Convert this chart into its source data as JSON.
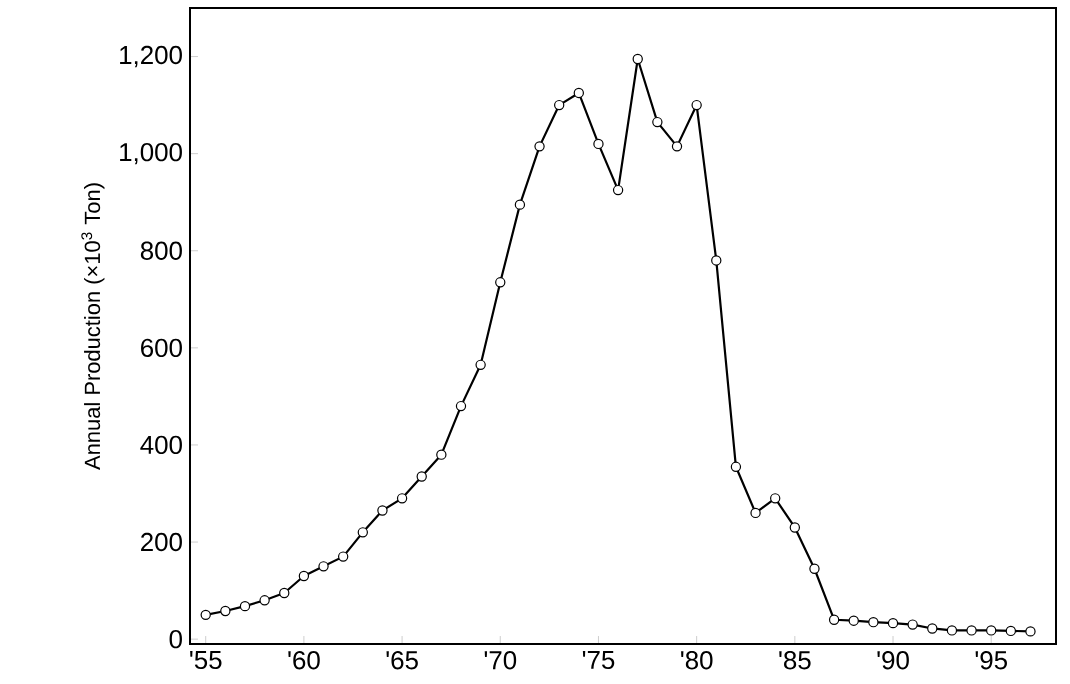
{
  "chart_data": {
    "type": "line",
    "ylabel": "Annual Production (×10$^{3}$ Ton)",
    "x": [
      1955,
      1956,
      1957,
      1958,
      1959,
      1960,
      1961,
      1962,
      1963,
      1964,
      1965,
      1966,
      1967,
      1968,
      1969,
      1970,
      1971,
      1972,
      1973,
      1974,
      1975,
      1976,
      1977,
      1978,
      1979,
      1980,
      1981,
      1982,
      1983,
      1984,
      1985,
      1986,
      1987,
      1988,
      1989,
      1990,
      1991,
      1992,
      1993,
      1994,
      1995,
      1996,
      1997
    ],
    "series": [
      {
        "color": "#000000",
        "values": [
          50,
          58,
          68,
          80,
          95,
          130,
          150,
          170,
          220,
          265,
          290,
          335,
          380,
          480,
          565,
          735,
          895,
          1015,
          1100,
          1125,
          1020,
          925,
          1195,
          1065,
          1015,
          1100,
          780,
          355,
          260,
          290,
          230,
          145,
          40,
          38,
          35,
          33,
          30,
          22,
          18,
          18,
          18,
          17,
          16
        ]
      }
    ],
    "xlim": [
      1954.2,
      1998.3
    ],
    "ylim": [
      -10,
      1300
    ],
    "xticks": [
      {
        "value": 1955,
        "label": "'55"
      },
      {
        "value": 1960,
        "label": "'60"
      },
      {
        "value": 1965,
        "label": "'65"
      },
      {
        "value": 1970,
        "label": "'70"
      },
      {
        "value": 1975,
        "label": "'75"
      },
      {
        "value": 1980,
        "label": "'80"
      },
      {
        "value": 1985,
        "label": "'85"
      },
      {
        "value": 1990,
        "label": "'90"
      },
      {
        "value": 1995,
        "label": "'95"
      }
    ],
    "yticks": [
      0,
      200,
      400,
      600,
      800,
      {
        "value": 1000,
        "label": "1,000"
      },
      {
        "value": 1200,
        "label": "1,200"
      }
    ],
    "marker": "circle",
    "line_style": "solid"
  }
}
